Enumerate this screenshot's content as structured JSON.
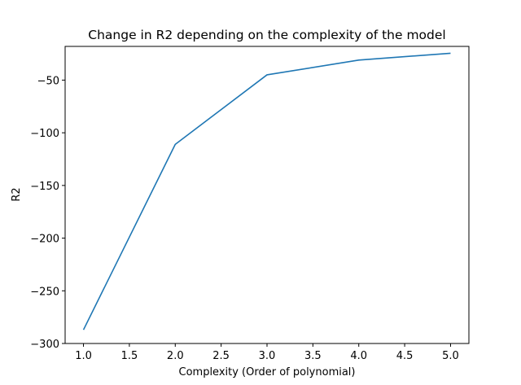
{
  "chart_data": {
    "type": "line",
    "title": "Change in R2 depending on the complexity of the model",
    "xlabel": "Complexity (Order of polynomial)",
    "ylabel": "R2",
    "xlim": [
      0.8,
      5.2
    ],
    "ylim": [
      -300,
      -18
    ],
    "x_ticks": [
      1.0,
      1.5,
      2.0,
      2.5,
      3.0,
      3.5,
      4.0,
      4.5,
      5.0
    ],
    "x_tick_labels": [
      "1.0",
      "1.5",
      "2.0",
      "2.5",
      "3.0",
      "3.5",
      "4.0",
      "4.5",
      "5.0"
    ],
    "y_ticks": [
      -300,
      -250,
      -200,
      -150,
      -100,
      -50
    ],
    "y_tick_labels": [
      "−300",
      "−250",
      "−200",
      "−150",
      "−100",
      "−50"
    ],
    "grid": false,
    "series": [
      {
        "color": "#1f77b4",
        "x": [
          1,
          2,
          3,
          4,
          5
        ],
        "y": [
          -287,
          -111,
          -45,
          -31,
          -24.5
        ]
      }
    ]
  }
}
